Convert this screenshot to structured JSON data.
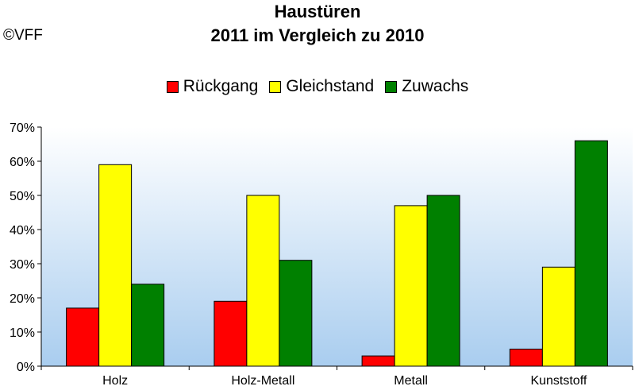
{
  "copyright": "©VFF",
  "chart_data": {
    "type": "bar",
    "title": "Haustüren",
    "subtitle": "2011 im Vergleich zu 2010",
    "categories": [
      "Holz",
      "Holz-Metall",
      "Metall",
      "Kunststoff"
    ],
    "series": [
      {
        "name": "Rückgang",
        "color": "#ff0000",
        "values": [
          17,
          19,
          3,
          5
        ]
      },
      {
        "name": "Gleichstand",
        "color": "#ffff00",
        "values": [
          59,
          50,
          47,
          29
        ]
      },
      {
        "name": "Zuwachs",
        "color": "#008000",
        "values": [
          24,
          31,
          50,
          66
        ]
      }
    ],
    "yticks": [
      "0%",
      "10%",
      "20%",
      "30%",
      "40%",
      "50%",
      "60%",
      "70%"
    ],
    "ylim": [
      0,
      70
    ],
    "legend_position": "top",
    "grid": false
  }
}
